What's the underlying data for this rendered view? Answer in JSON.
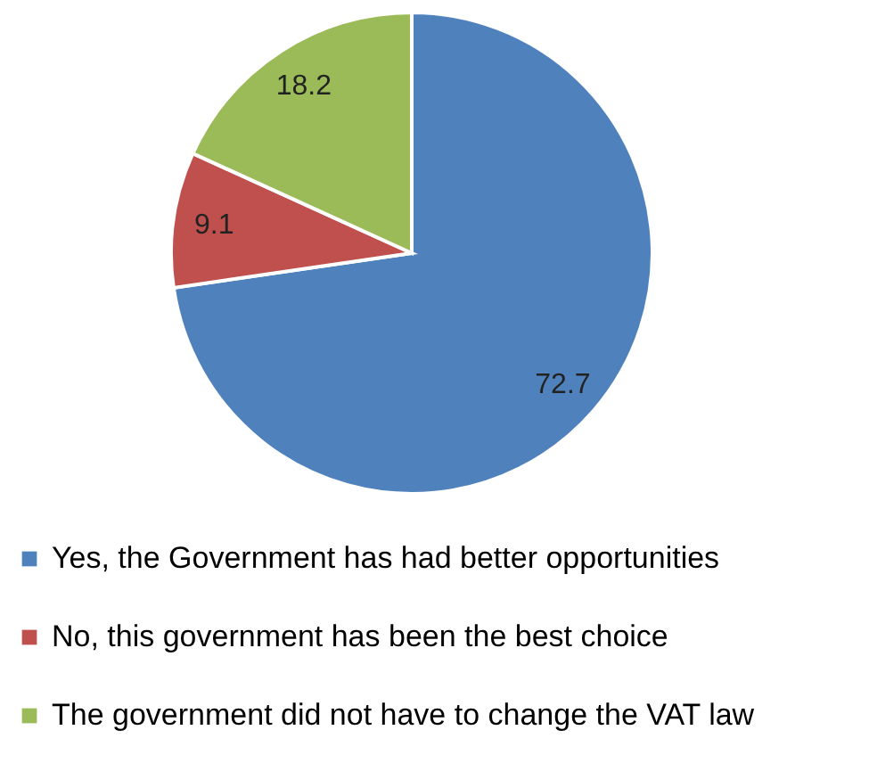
{
  "chart_data": {
    "type": "pie",
    "categories": [
      "Yes, the Government has had better opportunities",
      "No, this government has been the best choice",
      "The government did not have to change the VAT law"
    ],
    "values": [
      72.7,
      9.1,
      18.2
    ],
    "colors": [
      "#4f81bd",
      "#c0504d",
      "#9bbb59"
    ],
    "data_labels": true,
    "legend": "bottom"
  }
}
